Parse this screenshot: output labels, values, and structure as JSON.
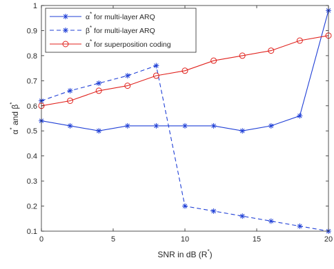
{
  "chart_data": {
    "type": "line",
    "title": "",
    "xlabel": {
      "text": "SNR in dB (R",
      "sup": "*",
      "suffix": ")"
    },
    "ylabel": {
      "alpha": "α",
      "sup1": "*",
      "mid": " and ",
      "beta": "β",
      "sup2": "*"
    },
    "xlim": [
      0,
      20
    ],
    "ylim": [
      0.1,
      1
    ],
    "xticks": [
      0,
      5,
      10,
      15,
      20
    ],
    "yticks": [
      0.1,
      0.2,
      0.3,
      0.4,
      0.5,
      0.6,
      0.7,
      0.8,
      0.9,
      1
    ],
    "xtick_labels": [
      "0",
      "5",
      "10",
      "15",
      "20"
    ],
    "ytick_labels": [
      "0.1",
      "0.2",
      "0.3",
      "0.4",
      "0.5",
      "0.6",
      "0.7",
      "0.8",
      "0.9",
      "1"
    ],
    "grid": false,
    "legend_position": "top-left",
    "series": [
      {
        "symbol": "α",
        "sup": "*",
        "label_rest": " for multi-layer ARQ",
        "color": "#1f3fd6",
        "line_style": "solid",
        "marker": "asterisk",
        "x": [
          0,
          2,
          4,
          6,
          8,
          10,
          12,
          14,
          16,
          18,
          20
        ],
        "y": [
          0.54,
          0.52,
          0.5,
          0.52,
          0.52,
          0.52,
          0.52,
          0.5,
          0.52,
          0.56,
          0.98
        ]
      },
      {
        "symbol": "β",
        "sup": "*",
        "label_rest": " for multi-layer ARQ",
        "color": "#1f3fd6",
        "line_style": "dashed",
        "marker": "asterisk",
        "x": [
          0,
          2,
          4,
          6,
          8,
          10,
          12,
          14,
          16,
          18,
          20
        ],
        "y": [
          0.62,
          0.66,
          0.69,
          0.72,
          0.76,
          0.2,
          0.18,
          0.16,
          0.14,
          0.12,
          0.1
        ]
      },
      {
        "symbol": "α",
        "sup": "*",
        "label_rest": " for superposition coding",
        "color": "#e0201b",
        "line_style": "solid",
        "marker": "circle",
        "x": [
          0,
          2,
          4,
          6,
          8,
          10,
          12,
          14,
          16,
          18,
          20
        ],
        "y": [
          0.6,
          0.62,
          0.66,
          0.68,
          0.72,
          0.74,
          0.78,
          0.8,
          0.82,
          0.86,
          0.88
        ]
      }
    ]
  }
}
